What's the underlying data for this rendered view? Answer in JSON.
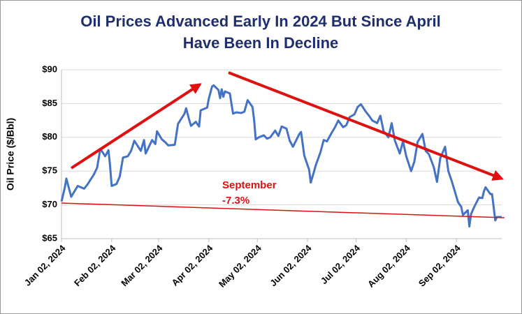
{
  "chart_data": {
    "type": "line",
    "title": [
      "Oil Prices Advanced Early In 2024 But Since April",
      "Have Been In Decline"
    ],
    "y_label": "Oil Price ($/Bbl)",
    "annotations": [
      "September",
      "-7.3%"
    ],
    "x": [
      "2024-01-02",
      "2024-01-04",
      "2024-01-05",
      "2024-01-08",
      "2024-01-10",
      "2024-01-12",
      "2024-01-16",
      "2024-01-18",
      "2024-01-22",
      "2024-01-24",
      "2024-01-26",
      "2024-01-29",
      "2024-01-31",
      "2024-02-01",
      "2024-02-02",
      "2024-02-05",
      "2024-02-07",
      "2024-02-09",
      "2024-02-12",
      "2024-02-14",
      "2024-02-16",
      "2024-02-20",
      "2024-02-22",
      "2024-02-23",
      "2024-02-27",
      "2024-02-29",
      "2024-03-01",
      "2024-03-04",
      "2024-03-06",
      "2024-03-08",
      "2024-03-12",
      "2024-03-14",
      "2024-03-18",
      "2024-03-19",
      "2024-03-21",
      "2024-03-22",
      "2024-03-25",
      "2024-03-27",
      "2024-03-28",
      "2024-04-01",
      "2024-04-02",
      "2024-04-04",
      "2024-04-05",
      "2024-04-08",
      "2024-04-09",
      "2024-04-10",
      "2024-04-11",
      "2024-04-12",
      "2024-04-15",
      "2024-04-17",
      "2024-04-19",
      "2024-04-22",
      "2024-04-24",
      "2024-04-26",
      "2024-04-29",
      "2024-04-30",
      "2024-05-01",
      "2024-05-03",
      "2024-05-06",
      "2024-05-08",
      "2024-05-10",
      "2024-05-13",
      "2024-05-15",
      "2024-05-17",
      "2024-05-20",
      "2024-05-22",
      "2024-05-24",
      "2024-05-28",
      "2024-05-29",
      "2024-05-31",
      "2024-06-03",
      "2024-06-04",
      "2024-06-06",
      "2024-06-07",
      "2024-06-10",
      "2024-06-12",
      "2024-06-14",
      "2024-06-17",
      "2024-06-19",
      "2024-06-21",
      "2024-06-24",
      "2024-06-26",
      "2024-06-28",
      "2024-07-01",
      "2024-07-03",
      "2024-07-05",
      "2024-07-08",
      "2024-07-10",
      "2024-07-12",
      "2024-07-15",
      "2024-07-17",
      "2024-07-19",
      "2024-07-22",
      "2024-07-24",
      "2024-07-26",
      "2024-07-29",
      "2024-07-31",
      "2024-08-02",
      "2024-08-05",
      "2024-08-07",
      "2024-08-09",
      "2024-08-12",
      "2024-08-14",
      "2024-08-16",
      "2024-08-19",
      "2024-08-21",
      "2024-08-23",
      "2024-08-26",
      "2024-08-28",
      "2024-08-30",
      "2024-09-03",
      "2024-09-05",
      "2024-09-06",
      "2024-09-09",
      "2024-09-10",
      "2024-09-11",
      "2024-09-13",
      "2024-09-16",
      "2024-09-18",
      "2024-09-19",
      "2024-09-20",
      "2024-09-23",
      "2024-09-24",
      "2024-09-25",
      "2024-09-26",
      "2024-09-27",
      "2024-09-30"
    ],
    "series": [
      {
        "name": "Oil Price",
        "color": "#4472c4",
        "values": [
          70.5,
          72.5,
          73.9,
          71.2,
          72.0,
          72.8,
          72.4,
          73.0,
          74.5,
          75.5,
          78.3,
          77.2,
          78.1,
          75.8,
          72.8,
          73.1,
          74.2,
          77.0,
          77.2,
          78.0,
          79.5,
          78.0,
          79.6,
          77.6,
          79.6,
          79.0,
          80.9,
          79.7,
          79.3,
          78.8,
          78.9,
          82.0,
          83.5,
          84.3,
          82.5,
          81.7,
          82.3,
          81.6,
          84.0,
          84.4,
          85.7,
          87.5,
          87.7,
          87.0,
          85.8,
          87.1,
          86.0,
          86.8,
          86.5,
          83.5,
          83.7,
          83.6,
          83.8,
          85.5,
          84.5,
          82.6,
          79.7,
          80.0,
          80.3,
          79.8,
          80.0,
          81.0,
          80.2,
          81.6,
          81.3,
          79.5,
          78.6,
          80.5,
          80.8,
          77.3,
          75.2,
          73.3,
          74.9,
          75.8,
          77.8,
          79.6,
          79.4,
          80.7,
          81.5,
          82.5,
          81.5,
          81.8,
          83.0,
          83.4,
          84.5,
          84.9,
          83.8,
          83.2,
          82.5,
          82.1,
          83.2,
          80.9,
          80.0,
          82.1,
          79.5,
          77.6,
          79.4,
          77.2,
          75.0,
          76.4,
          79.3,
          80.5,
          78.0,
          77.5,
          75.6,
          73.4,
          76.9,
          78.6,
          75.0,
          73.6,
          70.4,
          69.7,
          68.5,
          69.2,
          66.8,
          68.6,
          69.7,
          71.1,
          71.0,
          72.0,
          72.6,
          71.6,
          71.6,
          69.7,
          67.7,
          68.2,
          68.2
        ]
      }
    ],
    "xlim": [
      "2024-01-02",
      "2024-09-30"
    ],
    "xticks": [
      {
        "value": "2024-01-02",
        "label": "Jan 02, 2024"
      },
      {
        "value": "2024-02-02",
        "label": "Feb 02, 2024"
      },
      {
        "value": "2024-03-02",
        "label": "Mar 02, 2024"
      },
      {
        "value": "2024-04-02",
        "label": "Apr 02, 2024"
      },
      {
        "value": "2024-05-02",
        "label": "May 02, 2024"
      },
      {
        "value": "2024-06-02",
        "label": "Jun 02, 2024"
      },
      {
        "value": "2024-07-02",
        "label": "Jul 02, 2024"
      },
      {
        "value": "2024-08-02",
        "label": "Aug 02, 2024"
      },
      {
        "value": "2024-09-02",
        "label": "Sep 02, 2024"
      }
    ],
    "ylim": [
      65,
      90
    ],
    "yticks": [
      {
        "value": 65,
        "label": "$65"
      },
      {
        "value": 70,
        "label": "$70"
      },
      {
        "value": 75,
        "label": "$75"
      },
      {
        "value": 80,
        "label": "$80"
      },
      {
        "value": 85,
        "label": "$85"
      },
      {
        "value": 90,
        "label": "$90"
      }
    ],
    "grid": true
  }
}
